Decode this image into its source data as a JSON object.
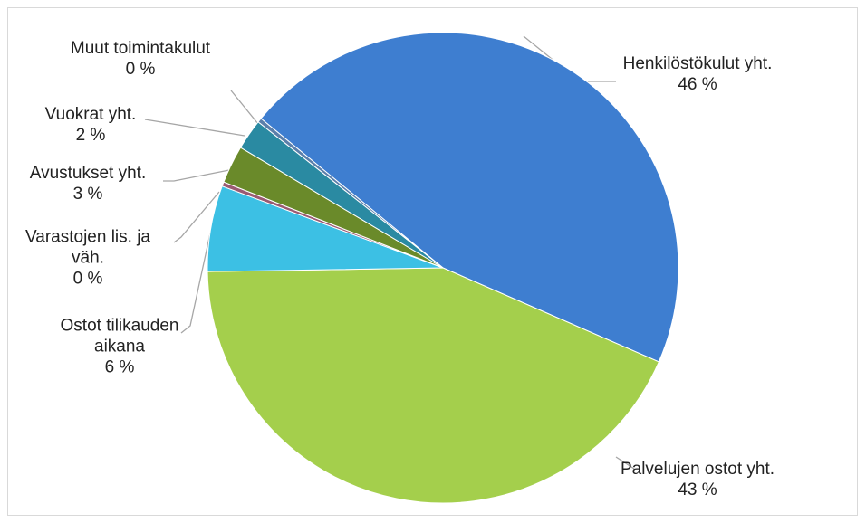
{
  "chart_data": {
    "type": "pie",
    "categories": [
      "Henkilöstökulut yht.",
      "Palvelujen ostot yht.",
      "Ostot tilikauden aikana",
      "Varastojen lis. ja väh.",
      "Avustukset yht.",
      "Vuokrat yht.",
      "Muut toimintakulut"
    ],
    "values": [
      45.6,
      43.2,
      5.9,
      0.3,
      2.6,
      2.1,
      0.3
    ],
    "value_labels": [
      "46 %",
      "43 %",
      "6 %",
      "0 %",
      "3 %",
      "2 %",
      "0 %"
    ],
    "colors": [
      "#3e7ed0",
      "#a4cf4c",
      "#3cc0e4",
      "#9a5a72",
      "#6a8a2a",
      "#2a8aa2",
      "#5b7faa"
    ]
  }
}
